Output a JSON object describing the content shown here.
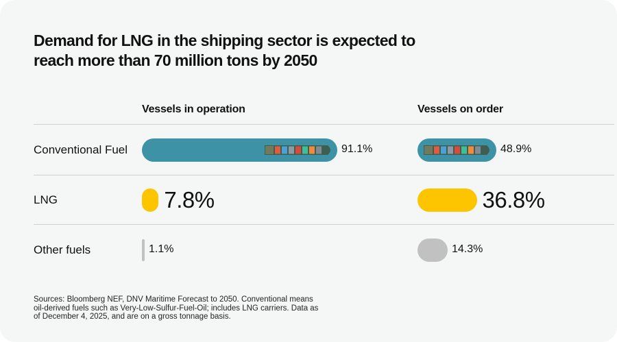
{
  "colors": {
    "conventional": "#3d93a5",
    "lng": "#fdc500",
    "other": "#c1c1c1",
    "text": "#111111",
    "divider": "#cfd2d2"
  },
  "chart_data": {
    "type": "bar",
    "title": "Demand for LNG in the shipping sector is expected to reach more than 70 million tons by 2050",
    "categories": [
      "Conventional Fuel",
      "LNG",
      "Other fuels"
    ],
    "series": [
      {
        "name": "Vessels in operation",
        "values": [
          91.1,
          7.8,
          1.1
        ],
        "labels": [
          "91.1%",
          "7.8%",
          "1.1%"
        ]
      },
      {
        "name": "Vessels on order",
        "values": [
          48.9,
          36.8,
          14.3
        ],
        "labels": [
          "48.9%",
          "36.8%",
          "14.3%"
        ]
      }
    ],
    "unit": "%",
    "xlim": [
      0,
      100
    ],
    "legend": "column headers",
    "source": "Sources: Bloomberg NEF, DNV Maritime Forecast to 2050. Conventional means oil-derived fuels such as Very-Low-Sulfur-Fuel-Oil; includes LNG carriers. Data as of December 4, 2025, and are on a gross tonnage basis."
  },
  "icons": {
    "bar-decoration": "container-ship-icon"
  }
}
